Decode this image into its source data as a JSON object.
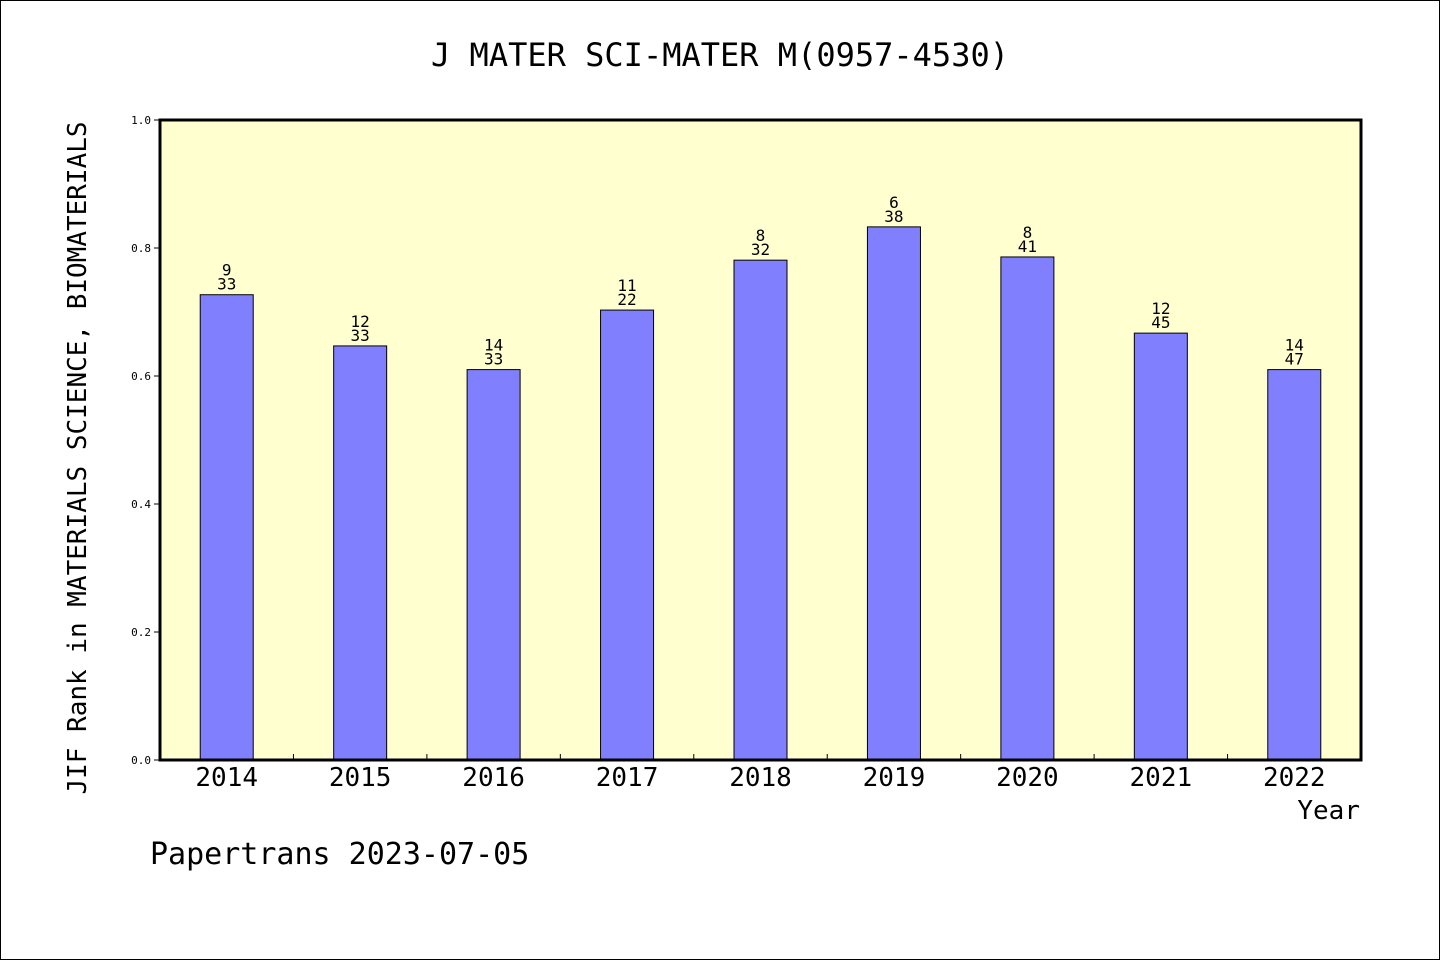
{
  "chart_data": {
    "type": "bar",
    "title": "J MATER SCI-MATER M(0957-4530)",
    "xlabel": "Year",
    "ylabel": "JIF Rank in MATERIALS SCIENCE, BIOMATERIALS",
    "ylim": [
      0,
      1.0
    ],
    "yticks": [
      "0.0",
      "0.2",
      "0.4",
      "0.6",
      "0.8",
      "1.0"
    ],
    "categories": [
      "2014",
      "2015",
      "2016",
      "2017",
      "2018",
      "2019",
      "2020",
      "2021",
      "2022"
    ],
    "values": [
      0.727,
      0.647,
      0.61,
      0.703,
      0.781,
      0.833,
      0.786,
      0.667,
      0.61
    ],
    "rank_labels": [
      "9",
      "12",
      "14",
      "11",
      "8",
      "6",
      "8",
      "12",
      "14"
    ],
    "total_labels": [
      "33",
      "33",
      "33",
      "22",
      "32",
      "38",
      "41",
      "45",
      "47"
    ],
    "grid": false,
    "colors": {
      "plot_background": "#ffffd0",
      "bar_fill": "#8080ff",
      "bar_stroke": "#000000"
    }
  },
  "footer": "Papertrans 2023-07-05"
}
